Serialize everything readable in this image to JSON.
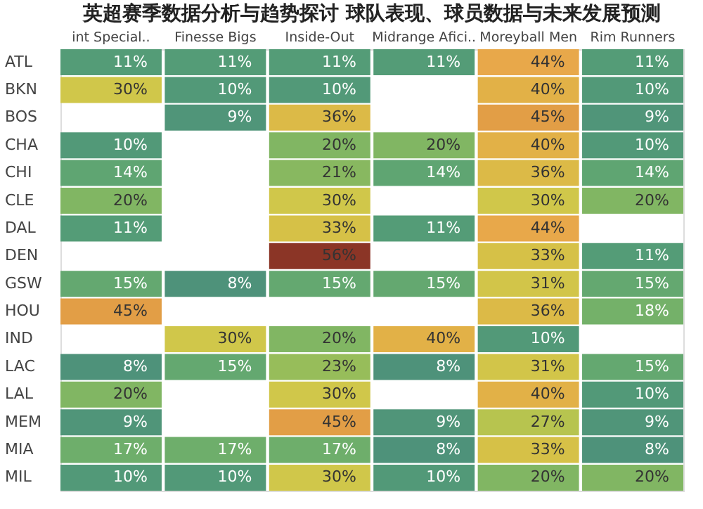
{
  "chart_data": {
    "type": "heatmap",
    "title": "英超赛季数据分析与趋势探讨 球队表现、球员数据与未来发展预测",
    "categories": [
      "int Special..",
      "Finesse Bigs",
      "Inside-Out",
      "Midrange Afici..",
      "Moreyball Men",
      "Rim Runners"
    ],
    "y_categories": [
      "ATL",
      "BKN",
      "BOS",
      "CHA",
      "CHI",
      "CLE",
      "DAL",
      "DEN",
      "GSW",
      "HOU",
      "IND",
      "LAC",
      "LAL",
      "MEM",
      "MIA",
      "MIL"
    ],
    "cells": [
      [
        11,
        11,
        11,
        11,
        44,
        11
      ],
      [
        30,
        10,
        10,
        null,
        40,
        10
      ],
      [
        null,
        9,
        36,
        null,
        45,
        9
      ],
      [
        10,
        null,
        20,
        20,
        40,
        10
      ],
      [
        14,
        null,
        21,
        14,
        36,
        14
      ],
      [
        20,
        null,
        30,
        null,
        30,
        20
      ],
      [
        11,
        null,
        33,
        11,
        44,
        null
      ],
      [
        null,
        null,
        56,
        null,
        33,
        11
      ],
      [
        15,
        8,
        15,
        15,
        31,
        15
      ],
      [
        45,
        null,
        null,
        null,
        36,
        18
      ],
      [
        null,
        30,
        20,
        40,
        10,
        null
      ],
      [
        8,
        15,
        23,
        8,
        31,
        15
      ],
      [
        20,
        null,
        30,
        null,
        40,
        10
      ],
      [
        9,
        null,
        45,
        9,
        27,
        9
      ],
      [
        17,
        17,
        17,
        8,
        33,
        8
      ],
      [
        10,
        10,
        30,
        10,
        20,
        20
      ]
    ],
    "cell_labels": [
      [
        "11%",
        "11%",
        "11%",
        "11%",
        "44%",
        "11%"
      ],
      [
        "30%",
        "10%",
        "10%",
        null,
        "40%",
        "10%"
      ],
      [
        null,
        "9%",
        "36%",
        null,
        "45%",
        "9%"
      ],
      [
        "10%",
        null,
        "20%",
        "20%",
        "40%",
        "10%"
      ],
      [
        "14%",
        null,
        "21%",
        "14%",
        "36%",
        "14%"
      ],
      [
        "20%",
        null,
        "30%",
        null,
        "30%",
        "20%"
      ],
      [
        "11%",
        null,
        "33%",
        "11%",
        "44%",
        null
      ],
      [
        null,
        null,
        "56%",
        null,
        "33%",
        "11%"
      ],
      [
        "15%",
        "8%",
        "15%",
        "15%",
        "31%",
        "15%"
      ],
      [
        "45%",
        null,
        null,
        null,
        "36%",
        "18%"
      ],
      [
        null,
        "30%",
        "20%",
        "40%",
        "10%",
        null
      ],
      [
        "8%",
        "15%",
        "23%",
        "8%",
        "31%",
        "15%"
      ],
      [
        "20%",
        null,
        "30%",
        null,
        "40%",
        "10%"
      ],
      [
        "9%",
        null,
        "45%",
        "9%",
        "27%",
        "9%"
      ],
      [
        "17%",
        "17%",
        "17%",
        "8%",
        "33%",
        "8%"
      ],
      [
        "10%",
        "10%",
        "30%",
        "10%",
        "20%",
        "20%"
      ]
    ]
  }
}
